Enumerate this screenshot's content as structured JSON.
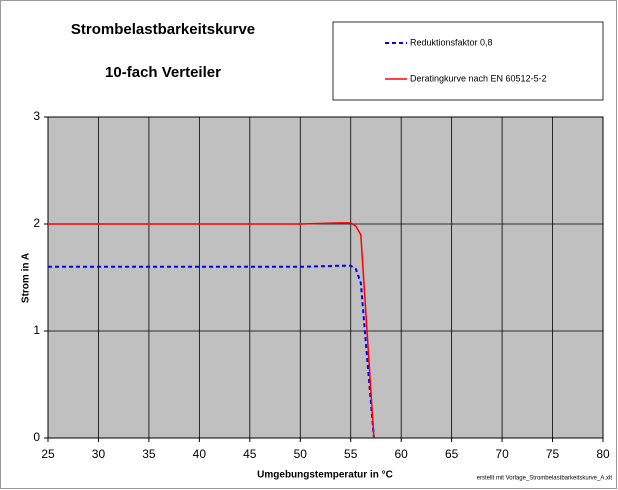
{
  "chart_data": {
    "type": "line",
    "title": "Strombelastbarkeitskurve",
    "subtitle": "10-fach Verteiler",
    "x_label": "Umgebungstemperatur in °C",
    "y_label": "Strom in A",
    "note": "erstellt mit Vorlage_Strombelastbarkeitskurve_A.xlt",
    "x": [
      25,
      50,
      54,
      55,
      55.5,
      56,
      56.5,
      57,
      57.3
    ],
    "series": [
      {
        "name": "Reduktionsfaktor 0,8",
        "color": "#0000ff",
        "dashed": true,
        "values": [
          1.6,
          1.6,
          1.61,
          1.61,
          1.58,
          1.45,
          0.89,
          0.33,
          0
        ]
      },
      {
        "name": "Deratingkurve nach EN 60512-5-2",
        "color": "#ff0000",
        "dashed": false,
        "values": [
          2,
          2,
          2.01,
          2.01,
          1.98,
          1.9,
          1.17,
          0.44,
          0
        ]
      }
    ],
    "xlim": [
      25,
      80
    ],
    "xticks": [
      25,
      30,
      35,
      40,
      45,
      50,
      55,
      60,
      65,
      70,
      75,
      80
    ],
    "ylim": [
      0,
      3
    ],
    "yticks": [
      0,
      1,
      2,
      3
    ],
    "grid": true,
    "plot_background": "#c0c0c0"
  }
}
